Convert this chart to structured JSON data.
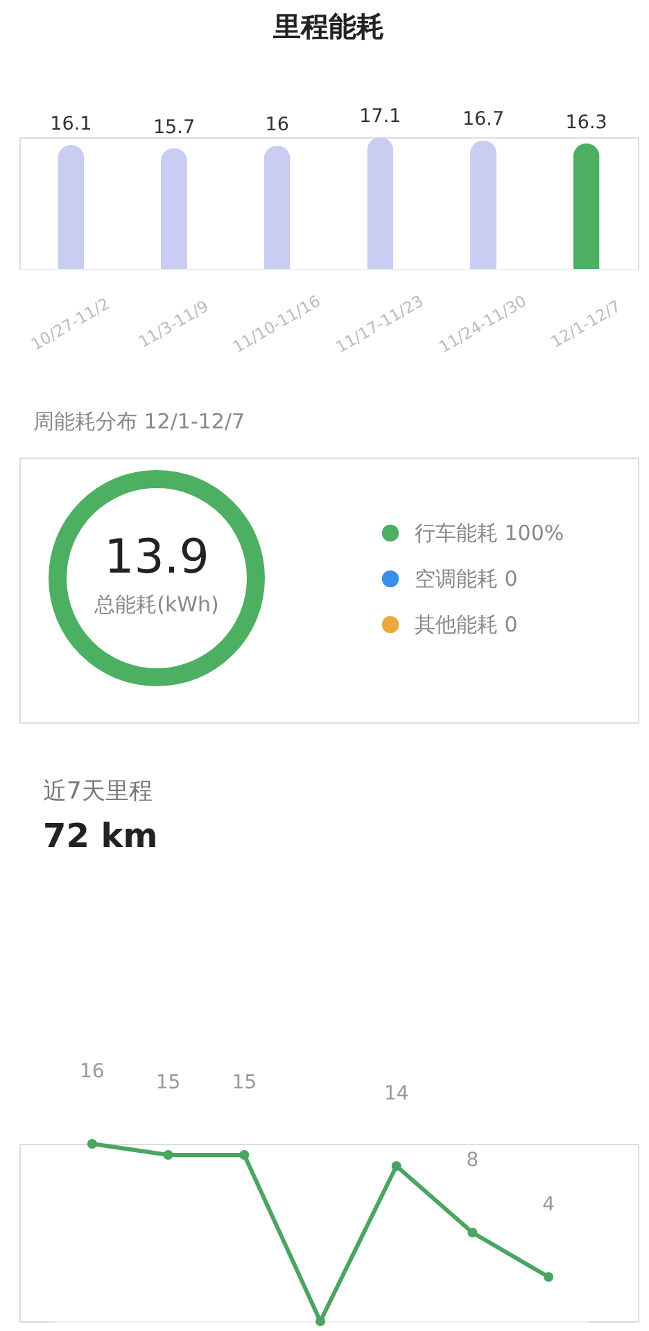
{
  "chart_data": [
    {
      "type": "bar",
      "title": "里程能耗",
      "categories": [
        "10/27-11/2",
        "11/3-11/9",
        "11/10-11/16",
        "11/17-11/23",
        "11/24-11/30",
        "12/1-12/7"
      ],
      "values": [
        16.1,
        15.7,
        16,
        17.1,
        16.7,
        16.3
      ],
      "colors": [
        "#c9cdf2",
        "#c9cdf2",
        "#c9cdf2",
        "#c9cdf2",
        "#c9cdf2",
        "#4caf62"
      ],
      "data_labels": true
    },
    {
      "type": "donut",
      "title": "周能耗分布 12/1-12/7",
      "categories": [
        "行车能耗",
        "空调能耗",
        "其他能耗"
      ],
      "values": [
        100,
        0,
        0
      ],
      "colors": [
        "#4caf62",
        "#3a8ee8",
        "#eaa93a"
      ],
      "value_labels": [
        "100%",
        "0",
        "0"
      ],
      "legend": "right",
      "annotations": [
        "13.9",
        "总能耗(kWh)"
      ]
    },
    {
      "type": "line",
      "title": "近7天里程",
      "subtitle": "72 km",
      "categories": [
        null,
        null,
        null,
        null,
        null,
        null,
        null
      ],
      "values": [
        16,
        15,
        15,
        0,
        14,
        8,
        4
      ],
      "value_labels": [
        "16",
        "15",
        "15",
        null,
        "14",
        "8",
        "4"
      ],
      "color": "#4aa562",
      "marker": "circle",
      "line_style": "solid"
    }
  ]
}
